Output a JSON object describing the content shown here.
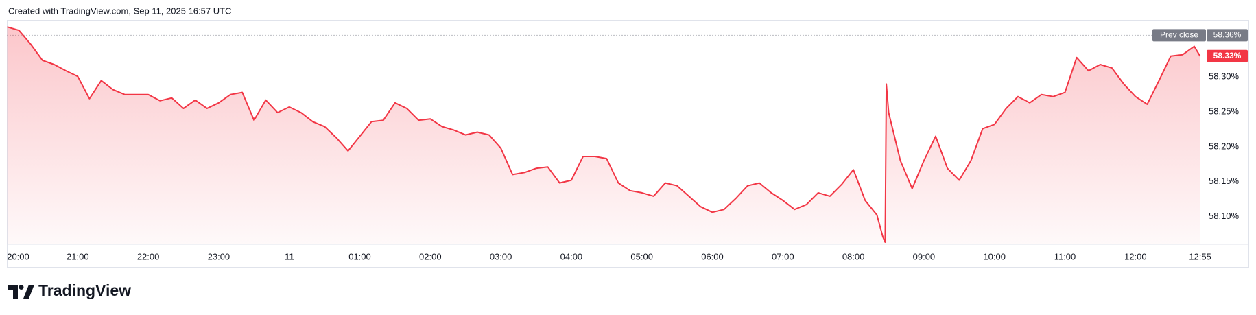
{
  "header": {
    "text": "Created with TradingView.com, Sep 11, 2025 16:57 UTC"
  },
  "footer": {
    "brand": "TradingView"
  },
  "chart_data": {
    "type": "line",
    "grid": false,
    "area_fill": true,
    "series": [
      {
        "name": null,
        "color": "#f23645",
        "x": [
          "20:00",
          "20:10",
          "20:20",
          "20:30",
          "20:40",
          "20:50",
          "21:00",
          "21:10",
          "21:20",
          "21:30",
          "21:40",
          "21:50",
          "22:00",
          "22:10",
          "22:20",
          "22:30",
          "22:40",
          "22:50",
          "23:00",
          "23:10",
          "23:20",
          "23:30",
          "23:40",
          "23:50",
          "00:00",
          "00:10",
          "00:20",
          "00:30",
          "00:40",
          "00:50",
          "01:00",
          "01:10",
          "01:20",
          "01:30",
          "01:40",
          "01:50",
          "02:00",
          "02:10",
          "02:20",
          "02:30",
          "02:40",
          "02:50",
          "03:00",
          "03:10",
          "03:20",
          "03:30",
          "03:40",
          "03:50",
          "04:00",
          "04:10",
          "04:20",
          "04:30",
          "04:40",
          "04:50",
          "05:00",
          "05:10",
          "05:20",
          "05:30",
          "05:40",
          "05:50",
          "06:00",
          "06:10",
          "06:20",
          "06:30",
          "06:40",
          "06:50",
          "07:00",
          "07:10",
          "07:20",
          "07:30",
          "07:40",
          "07:50",
          "08:00",
          "08:10",
          "08:20",
          "08:25",
          "08:27",
          "08:28",
          "08:30",
          "08:40",
          "08:50",
          "09:00",
          "09:10",
          "09:20",
          "09:30",
          "09:40",
          "09:50",
          "10:00",
          "10:10",
          "10:20",
          "10:30",
          "10:40",
          "10:50",
          "11:00",
          "11:10",
          "11:20",
          "11:30",
          "11:40",
          "11:50",
          "12:00",
          "12:10",
          "12:20",
          "12:30",
          "12:40",
          "12:50",
          "12:55"
        ],
        "values": [
          58.372,
          58.367,
          58.347,
          58.324,
          58.318,
          58.309,
          58.301,
          58.269,
          58.295,
          58.282,
          58.275,
          58.275,
          58.275,
          58.266,
          58.27,
          58.255,
          58.267,
          58.255,
          58.263,
          58.275,
          58.278,
          58.238,
          58.267,
          58.249,
          58.257,
          58.249,
          58.236,
          58.229,
          58.213,
          58.194,
          58.215,
          58.236,
          58.238,
          58.263,
          58.255,
          58.238,
          58.24,
          58.229,
          58.224,
          58.217,
          58.221,
          58.217,
          58.198,
          58.16,
          58.163,
          58.169,
          58.171,
          58.148,
          58.152,
          58.186,
          58.186,
          58.183,
          58.148,
          58.137,
          58.134,
          58.129,
          58.148,
          58.144,
          58.129,
          58.114,
          58.106,
          58.11,
          58.126,
          58.144,
          58.148,
          58.134,
          58.123,
          58.11,
          58.117,
          58.134,
          58.129,
          58.146,
          58.167,
          58.123,
          58.102,
          58.071,
          58.063,
          58.29,
          58.249,
          58.18,
          58.14,
          58.18,
          58.215,
          58.169,
          58.152,
          58.18,
          58.226,
          58.232,
          58.255,
          58.272,
          58.263,
          58.275,
          58.272,
          58.278,
          58.328,
          58.309,
          58.318,
          58.313,
          58.29,
          58.272,
          58.261,
          58.295,
          58.33,
          58.332,
          58.344,
          58.33
        ]
      }
    ],
    "ylim": [
      58.06,
      58.382
    ],
    "yticks": [
      {
        "value": 58.1,
        "label": "58.10%"
      },
      {
        "value": 58.15,
        "label": "58.15%"
      },
      {
        "value": 58.2,
        "label": "58.20%"
      },
      {
        "value": 58.25,
        "label": "58.25%"
      },
      {
        "value": 58.3,
        "label": "58.30%"
      }
    ],
    "xticks": [
      "20:00",
      "21:00",
      "22:00",
      "23:00",
      {
        "value": "00:00",
        "label": "11"
      },
      "01:00",
      "02:00",
      "03:00",
      "04:00",
      "05:00",
      "06:00",
      "07:00",
      "08:00",
      "09:00",
      "10:00",
      "11:00",
      "12:00",
      "12:55"
    ],
    "prev_close": {
      "name": "Prev close",
      "value": 58.36,
      "label": "58.36%",
      "color": "#787b86"
    },
    "last_price": {
      "value": 58.33,
      "label": "58.33%",
      "color": "#f23645"
    }
  }
}
